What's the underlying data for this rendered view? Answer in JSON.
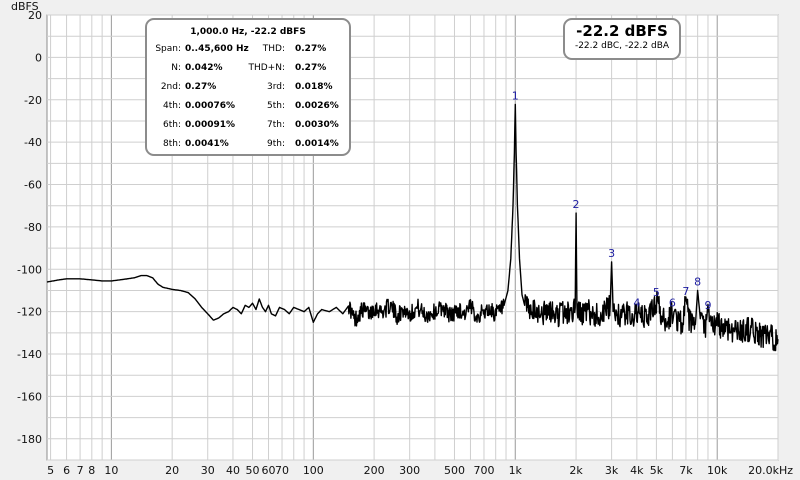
{
  "chart_data": {
    "type": "line",
    "title": "",
    "ylabel": "dBFS",
    "xlabel": "",
    "x_scale": "log",
    "xlim": [
      4.8,
      20000
    ],
    "ylim": [
      -190,
      20
    ],
    "grid": true,
    "x_ticks": [
      {
        "label": "5",
        "value": 5
      },
      {
        "label": "6",
        "value": 6
      },
      {
        "label": "7",
        "value": 7
      },
      {
        "label": "8",
        "value": 8
      },
      {
        "label": "10",
        "value": 10
      },
      {
        "label": "20",
        "value": 20
      },
      {
        "label": "30",
        "value": 30
      },
      {
        "label": "40",
        "value": 40
      },
      {
        "label": "50",
        "value": 50
      },
      {
        "label": "60",
        "value": 60
      },
      {
        "label": "70",
        "value": 70
      },
      {
        "label": "100",
        "value": 100
      },
      {
        "label": "200",
        "value": 200
      },
      {
        "label": "300",
        "value": 300
      },
      {
        "label": "500",
        "value": 500
      },
      {
        "label": "700",
        "value": 700
      },
      {
        "label": "1k",
        "value": 1000
      },
      {
        "label": "2k",
        "value": 2000
      },
      {
        "label": "3k",
        "value": 3000
      },
      {
        "label": "4k",
        "value": 4000
      },
      {
        "label": "5k",
        "value": 5000
      },
      {
        "label": "7k",
        "value": 7000
      },
      {
        "label": "10k",
        "value": 10000
      },
      {
        "label": "20.0kHz",
        "value": 20000
      }
    ],
    "y_ticks": [
      {
        "label": "20",
        "value": 20
      },
      {
        "label": "0",
        "value": 0
      },
      {
        "label": "-20",
        "value": -20
      },
      {
        "label": "-40",
        "value": -40
      },
      {
        "label": "-60",
        "value": -60
      },
      {
        "label": "-80",
        "value": -80
      },
      {
        "label": "-100",
        "value": -100
      },
      {
        "label": "-120",
        "value": -120
      },
      {
        "label": "-140",
        "value": -140
      },
      {
        "label": "-160",
        "value": -160
      },
      {
        "label": "-180",
        "value": -180
      }
    ],
    "series": [
      {
        "points": [
          [
            4.8,
            -106
          ],
          [
            5.5,
            -105
          ],
          [
            6,
            -104.5
          ],
          [
            7,
            -104.5
          ],
          [
            8,
            -105
          ],
          [
            9,
            -105.5
          ],
          [
            10,
            -105.5
          ],
          [
            11,
            -105
          ],
          [
            12,
            -104.5
          ],
          [
            13,
            -104
          ],
          [
            14,
            -103
          ],
          [
            15,
            -103
          ],
          [
            16,
            -104
          ],
          [
            17,
            -107
          ],
          [
            18,
            -108.5
          ],
          [
            19,
            -109
          ],
          [
            20,
            -109.5
          ],
          [
            22,
            -110
          ],
          [
            24,
            -111
          ],
          [
            26,
            -114
          ],
          [
            28,
            -118
          ],
          [
            30,
            -121
          ],
          [
            32,
            -124
          ],
          [
            34,
            -123
          ],
          [
            36,
            -121
          ],
          [
            38,
            -120
          ],
          [
            40,
            -118
          ],
          [
            42,
            -119
          ],
          [
            44,
            -121
          ],
          [
            46,
            -117
          ],
          [
            48,
            -118
          ],
          [
            50,
            -116
          ],
          [
            52,
            -119
          ],
          [
            54,
            -114
          ],
          [
            56,
            -118
          ],
          [
            58,
            -120
          ],
          [
            60,
            -117
          ],
          [
            62,
            -121
          ],
          [
            65,
            -122
          ],
          [
            68,
            -118
          ],
          [
            72,
            -119
          ],
          [
            76,
            -121
          ],
          [
            80,
            -118
          ],
          [
            85,
            -119
          ],
          [
            90,
            -120
          ],
          [
            95,
            -118
          ],
          [
            100,
            -125
          ],
          [
            105,
            -121
          ],
          [
            110,
            -119
          ],
          [
            120,
            -120
          ],
          [
            130,
            -118
          ],
          [
            140,
            -121
          ],
          [
            150,
            -117
          ],
          [
            160,
            -124
          ],
          [
            175,
            -119
          ],
          [
            190,
            -121
          ],
          [
            200,
            -118
          ],
          [
            220,
            -120
          ],
          [
            240,
            -117
          ],
          [
            260,
            -122
          ],
          [
            280,
            -119
          ],
          [
            300,
            -121
          ],
          [
            330,
            -118
          ],
          [
            360,
            -122
          ],
          [
            400,
            -120
          ],
          [
            440,
            -118
          ],
          [
            480,
            -122
          ],
          [
            520,
            -119
          ],
          [
            560,
            -121
          ],
          [
            600,
            -118
          ],
          [
            650,
            -122
          ],
          [
            700,
            -120
          ],
          [
            750,
            -119
          ],
          [
            800,
            -121
          ],
          [
            850,
            -119
          ],
          [
            880,
            -117
          ],
          [
            920,
            -110
          ],
          [
            950,
            -95
          ],
          [
            975,
            -70
          ],
          [
            990,
            -45
          ],
          [
            1000,
            -22.2
          ],
          [
            1010,
            -45
          ],
          [
            1025,
            -70
          ],
          [
            1050,
            -95
          ],
          [
            1080,
            -112
          ],
          [
            1120,
            -118
          ],
          [
            1200,
            -121
          ],
          [
            1300,
            -120
          ],
          [
            1400,
            -121
          ],
          [
            1500,
            -120
          ],
          [
            1600,
            -122
          ],
          [
            1700,
            -120
          ],
          [
            1800,
            -121
          ],
          [
            1900,
            -120
          ],
          [
            1980,
            -118
          ],
          [
            2000,
            -73.5
          ],
          [
            2020,
            -118
          ],
          [
            2100,
            -121
          ],
          [
            2300,
            -120
          ],
          [
            2500,
            -122
          ],
          [
            2700,
            -121
          ],
          [
            2950,
            -118
          ],
          [
            3000,
            -96.5
          ],
          [
            3050,
            -118
          ],
          [
            3300,
            -122
          ],
          [
            3600,
            -121
          ],
          [
            3900,
            -122
          ],
          [
            4000,
            -120
          ],
          [
            4200,
            -123
          ],
          [
            4600,
            -122
          ],
          [
            5000,
            -115
          ],
          [
            5400,
            -124
          ],
          [
            5800,
            -123
          ],
          [
            6000,
            -120
          ],
          [
            6400,
            -124
          ],
          [
            6800,
            -125
          ],
          [
            7000,
            -114.5
          ],
          [
            7300,
            -125
          ],
          [
            7800,
            -126
          ],
          [
            8000,
            -110
          ],
          [
            8300,
            -126
          ],
          [
            8800,
            -127
          ],
          [
            9000,
            -121
          ],
          [
            9400,
            -127
          ],
          [
            10000,
            -126
          ],
          [
            10500,
            -127
          ],
          [
            11500,
            -128
          ],
          [
            12500,
            -129
          ],
          [
            13500,
            -129
          ],
          [
            14500,
            -128
          ],
          [
            15500,
            -130
          ],
          [
            16500,
            -131
          ],
          [
            17500,
            -132
          ],
          [
            18500,
            -132
          ],
          [
            20000,
            -133
          ]
        ]
      }
    ],
    "harmonic_markers": [
      {
        "label": "1",
        "freq": 1000,
        "level": -22.2
      },
      {
        "label": "2",
        "freq": 2000,
        "level": -73.5
      },
      {
        "label": "3",
        "freq": 3000,
        "level": -96.5
      },
      {
        "label": "4",
        "freq": 4000,
        "level": -120
      },
      {
        "label": "5",
        "freq": 5000,
        "level": -115
      },
      {
        "label": "6",
        "freq": 6000,
        "level": -120
      },
      {
        "label": "7",
        "freq": 7000,
        "level": -114.5
      },
      {
        "label": "8",
        "freq": 8000,
        "level": -110
      },
      {
        "label": "9",
        "freq": 9000,
        "level": -121
      }
    ]
  },
  "stats_panel": {
    "title": "1,000.0 Hz, -22.2 dBFS",
    "rows": [
      {
        "label_a": "Span:",
        "value_a": "0..45,600 Hz",
        "label_b": "THD:",
        "value_b": "0.27%"
      },
      {
        "label_a": "N:",
        "value_a": "0.042%",
        "label_b": "THD+N:",
        "value_b": "0.27%"
      },
      {
        "label_a": "2nd:",
        "value_a": "0.27%",
        "label_b": "3rd:",
        "value_b": "0.018%"
      },
      {
        "label_a": "4th:",
        "value_a": "0.00076%",
        "label_b": "5th:",
        "value_b": "0.0026%"
      },
      {
        "label_a": "6th:",
        "value_a": "0.00091%",
        "label_b": "7th:",
        "value_b": "0.0030%"
      },
      {
        "label_a": "8th:",
        "value_a": "0.0041%",
        "label_b": "9th:",
        "value_b": "0.0014%"
      }
    ]
  },
  "level_panel": {
    "main": "-22.2 dBFS",
    "sub": "-22.2 dBC, -22.2 dBA"
  },
  "colors": {
    "background": "#f0f0f0",
    "plot_background": "#ffffff",
    "grid_line": "#cfcfcf",
    "grid_major": "#9a9a9a",
    "trace": "#000000",
    "harmonic_label": "#1b1ba0"
  }
}
